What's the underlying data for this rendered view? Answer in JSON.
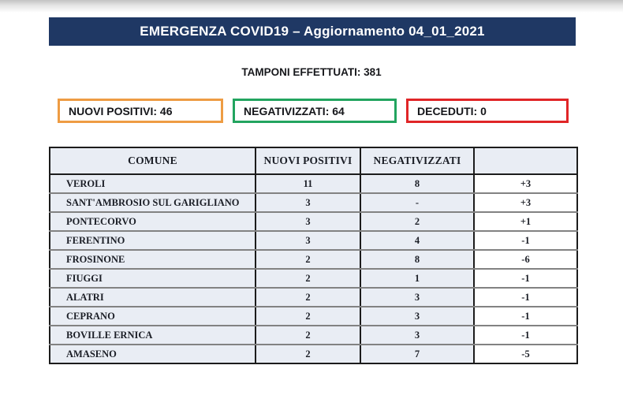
{
  "header": {
    "title": "EMERGENZA COVID19 – Aggiornamento 04_01_2021",
    "tamponi_line": "TAMPONI EFFETTUATI: 381"
  },
  "summary_boxes": [
    {
      "id": "nuovi-positivi",
      "label": "NUOVI POSITIVI: 46",
      "border_color": "#EE9C43"
    },
    {
      "id": "negativizzati",
      "label": "NEGATIVIZZATI: 64",
      "border_color": "#22A45F"
    },
    {
      "id": "deceduti",
      "label": "DECEDUTI: 0",
      "border_color": "#E02527"
    }
  ],
  "table": {
    "headers": [
      "COMUNE",
      "NUOVI POSITIVI",
      "NEGATIVIZZATI",
      ""
    ],
    "rows": [
      {
        "comune": "VEROLI",
        "nuovi_positivi": "11",
        "negativizzati": "8",
        "variazione": "+3"
      },
      {
        "comune": "SANT'AMBROSIO SUL GARIGLIANO",
        "nuovi_positivi": "3",
        "negativizzati": "-",
        "variazione": "+3"
      },
      {
        "comune": "PONTECORVO",
        "nuovi_positivi": "3",
        "negativizzati": "2",
        "variazione": "+1"
      },
      {
        "comune": "FERENTINO",
        "nuovi_positivi": "3",
        "negativizzati": "4",
        "variazione": "-1"
      },
      {
        "comune": "FROSINONE",
        "nuovi_positivi": "2",
        "negativizzati": "8",
        "variazione": "-6"
      },
      {
        "comune": "FIUGGI",
        "nuovi_positivi": "2",
        "negativizzati": "1",
        "variazione": "-1"
      },
      {
        "comune": "ALATRI",
        "nuovi_positivi": "2",
        "negativizzati": "3",
        "variazione": "-1"
      },
      {
        "comune": "CEPRANO",
        "nuovi_positivi": "2",
        "negativizzati": "3",
        "variazione": "-1"
      },
      {
        "comune": "BOVILLE ERNICA",
        "nuovi_positivi": "2",
        "negativizzati": "3",
        "variazione": "-1"
      },
      {
        "comune": "AMASENO",
        "nuovi_positivi": "2",
        "negativizzati": "7",
        "variazione": "-5"
      }
    ]
  },
  "colors": {
    "navy_bar": "#1F3864",
    "orange_border": "#EE9C43",
    "green_border": "#22A45F",
    "red_border": "#E02527",
    "positivi_header_gradient": [
      "#F1666B",
      "#FBD6D4"
    ],
    "negativi_header_gradient": [
      "#A2D49C",
      "#E3F3DF",
      "#ABD8A4"
    ],
    "row_background": "#E9EDF4",
    "delta_column_background": "#FFFFFF"
  }
}
